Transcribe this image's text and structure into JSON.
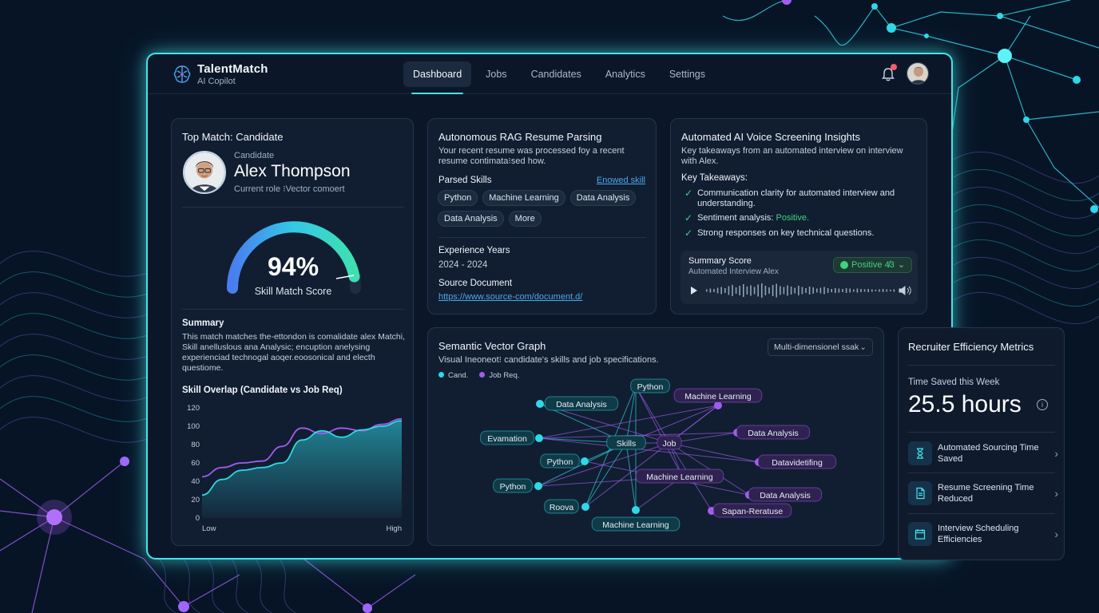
{
  "brand": {
    "name": "TalentMatch",
    "subtitle": "AI Copilot"
  },
  "nav": [
    {
      "label": "Dashboard",
      "active": true
    },
    {
      "label": "Jobs"
    },
    {
      "label": "Candidates"
    },
    {
      "label": "Analytics"
    },
    {
      "label": "Settings"
    }
  ],
  "top_match": {
    "title": "Top Match: Candidate",
    "label": "Candidate",
    "name": "Alex Thompson",
    "role": "Current role  ⁝Vector comoert",
    "score": "94%",
    "score_value": 94,
    "score_label": "Skill Match Score",
    "summary_heading": "Summary",
    "summary_text": "This match matches the-ettondon is comalidate alex Matchi, Skill anelluslous ana Analysic; encuption anelysing experienciad technogal aoqer.eoosonical and electh questiome.",
    "chart_heading": "Skill Overlap (Candidate vs Job Req)"
  },
  "rag": {
    "title": "Autonomous RAG Resume Parsing",
    "desc": "Your recent resume was processed foy a recent resume contimata⁝sed how.",
    "skills_label": "Parsed Skills",
    "skills_link": "Enowed skill",
    "skills": [
      "Python",
      "Machine Learning",
      "Data Analysis",
      "Data Analysis",
      "More"
    ],
    "exp_label": "Experience Years",
    "exp_value": "2024 - 2024",
    "doc_label": "Source Document",
    "doc_link": "https://www.source-com/document.d/"
  },
  "voice": {
    "title": "Automated AI Voice Screening Insights",
    "desc": "Key takeaways from an automated interview on interview with Alex.",
    "takeaways_label": "Key Takeaways:",
    "takeaway1": "Communication clarity for automated interview and understanding.",
    "takeaway2_prefix": "Sentiment analysis: ",
    "takeaway2_value": "Positive.",
    "takeaway3": "Strong responses on key technical questions.",
    "summary_label": "Summary Score",
    "summary_sub": "Automated Interview Alex",
    "badge": "Positive 4̸3"
  },
  "graph": {
    "title": "Semantic Vector Graph",
    "desc": "Visual Ineoneot⁝ candidate's skills and job specifications.",
    "dropdown": "Multi-dimensionel ssak",
    "legend_cand": "Cand.",
    "legend_job": "Job Req.",
    "colors": {
      "cand": "#2fd8e6",
      "job": "#a15cf0"
    },
    "nodes": [
      {
        "id": "python1",
        "label": "Python",
        "group": "cand"
      },
      {
        "id": "da1",
        "label": "Data Analysis",
        "group": "cand"
      },
      {
        "id": "eval",
        "label": "Evamation",
        "group": "cand"
      },
      {
        "id": "python2",
        "label": "Python",
        "group": "cand"
      },
      {
        "id": "python3",
        "label": "Python",
        "group": "cand"
      },
      {
        "id": "roova",
        "label": "Roova",
        "group": "cand"
      },
      {
        "id": "ml1",
        "label": "Machine Learning",
        "group": "cand"
      },
      {
        "id": "skills",
        "label": "Skills",
        "group": "cand"
      },
      {
        "id": "job",
        "label": "Job",
        "group": "job"
      },
      {
        "id": "ml2",
        "label": "Machine Learning",
        "group": "job"
      },
      {
        "id": "da2",
        "label": "Data Analysis",
        "group": "job"
      },
      {
        "id": "dvid",
        "label": "Datavidetifing",
        "group": "job"
      },
      {
        "id": "ml3",
        "label": "Machine Learning",
        "group": "job"
      },
      {
        "id": "da3",
        "label": "Data Analysis",
        "group": "job"
      },
      {
        "id": "sapan",
        "label": "Sapan-Reratuse",
        "group": "job"
      }
    ]
  },
  "metrics": {
    "title": "Recruiter Efficiency Metrics",
    "time_label": "Time Saved this Week",
    "time_value": "25.5 hours",
    "rows": [
      {
        "label": "Automated Sourcing Time Saved",
        "icon": "hourglass-icon"
      },
      {
        "label": "Resume Screening Time Reduced",
        "icon": "document-icon"
      },
      {
        "label": "Interview Scheduling Efficiencies",
        "icon": "calendar-icon"
      }
    ]
  },
  "chart_data": {
    "type": "area",
    "title": "Skill Overlap (Candidate vs Job Req)",
    "x_labels": [
      "Low",
      "High"
    ],
    "ylim": [
      0,
      120
    ],
    "yticks": [
      0,
      20,
      40,
      60,
      80,
      100,
      120
    ],
    "grid": false,
    "series": [
      {
        "values": [
          45,
          55,
          60,
          62,
          78,
          98,
          92,
          98,
          95,
          102,
          108
        ]
      },
      {
        "values": [
          25,
          42,
          52,
          55,
          60,
          85,
          95,
          88,
          96,
          100,
          106
        ]
      }
    ]
  }
}
